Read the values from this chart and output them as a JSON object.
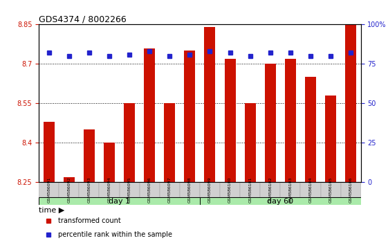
{
  "title": "GDS4374 / 8002266",
  "samples": [
    "GSM586091",
    "GSM586092",
    "GSM586093",
    "GSM586094",
    "GSM586095",
    "GSM586096",
    "GSM586097",
    "GSM586098",
    "GSM586099",
    "GSM586100",
    "GSM586101",
    "GSM586102",
    "GSM586103",
    "GSM586104",
    "GSM586105",
    "GSM586106"
  ],
  "bar_values": [
    8.48,
    8.27,
    8.45,
    8.4,
    8.55,
    8.76,
    8.55,
    8.75,
    8.84,
    8.72,
    8.55,
    8.7,
    8.72,
    8.65,
    8.58,
    8.85
  ],
  "percentile_values": [
    82,
    80,
    82,
    80,
    81,
    83,
    80,
    81,
    83,
    82,
    80,
    82,
    82,
    80,
    80,
    82
  ],
  "ylim_left": [
    8.25,
    8.85
  ],
  "ylim_right": [
    0,
    100
  ],
  "yticks_left": [
    8.25,
    8.4,
    8.55,
    8.7,
    8.85
  ],
  "yticks_right": [
    0,
    25,
    50,
    75,
    100
  ],
  "bar_color": "#cc1100",
  "marker_color": "#2222cc",
  "bar_bottom": 8.25,
  "groups": [
    {
      "label": "day 1",
      "start": 0,
      "end": 8
    },
    {
      "label": "day 60",
      "start": 8,
      "end": 16
    }
  ],
  "group_color_light": "#aaeaaa",
  "bg_color": "#ffffff",
  "axis_bg": "#ffffff",
  "legend_items": [
    {
      "color": "#cc1100",
      "label": "transformed count"
    },
    {
      "color": "#2222cc",
      "label": "percentile rank within the sample"
    }
  ],
  "xlabel_time": "time"
}
